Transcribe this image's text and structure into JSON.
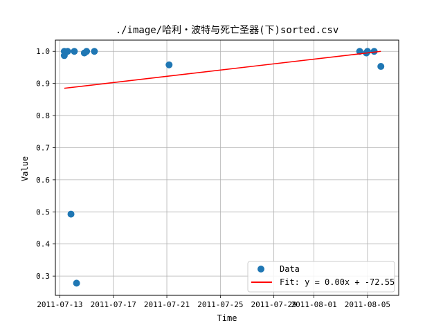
{
  "chart_data": {
    "type": "scatter",
    "title": "./image/哈利・波特与死亡圣器(下)sorted.csv",
    "xlabel": "Time",
    "ylabel": "Value",
    "x_is_date": true,
    "xlim": [
      "2011-07-12T16:00",
      "2011-08-07T08:00"
    ],
    "ylim": [
      0.24,
      1.035
    ],
    "x_ticks": [
      "2011-07-13",
      "2011-07-17",
      "2011-07-21",
      "2011-07-25",
      "2011-07-29",
      "2011-08-01",
      "2011-08-05"
    ],
    "y_ticks": [
      0.3,
      0.4,
      0.5,
      0.6,
      0.7,
      0.8,
      0.9,
      1.0
    ],
    "y_tick_labels": [
      "0.3",
      "0.4",
      "0.5",
      "0.6",
      "0.7",
      "0.8",
      "0.9",
      "1.0"
    ],
    "grid": true,
    "legend_position": "bottom-right",
    "series": [
      {
        "name": "Data",
        "kind": "scatter",
        "color": "#1f77b4",
        "points": [
          {
            "x": "2011-07-13T08:00",
            "y": 0.987
          },
          {
            "x": "2011-07-13T08:00",
            "y": 1.0
          },
          {
            "x": "2011-07-13T14:00",
            "y": 1.0
          },
          {
            "x": "2011-07-13T20:00",
            "y": 0.493
          },
          {
            "x": "2011-07-14T02:00",
            "y": 1.0
          },
          {
            "x": "2011-07-14T06:00",
            "y": 0.278
          },
          {
            "x": "2011-07-14T20:00",
            "y": 0.995
          },
          {
            "x": "2011-07-15T00:00",
            "y": 1.0
          },
          {
            "x": "2011-07-15T14:00",
            "y": 1.0
          },
          {
            "x": "2011-07-21T04:00",
            "y": 0.958
          },
          {
            "x": "2011-08-04T10:00",
            "y": 1.0
          },
          {
            "x": "2011-08-04T22:00",
            "y": 0.995
          },
          {
            "x": "2011-08-05T00:00",
            "y": 1.0
          },
          {
            "x": "2011-08-05T12:00",
            "y": 1.0
          },
          {
            "x": "2011-08-06T00:00",
            "y": 0.953
          }
        ]
      },
      {
        "name": "Fit: y = 0.00x + -72.55",
        "kind": "line",
        "color": "#ff0000",
        "points": [
          {
            "x": "2011-07-13T08:00",
            "y": 0.885
          },
          {
            "x": "2011-08-06T00:00",
            "y": 1.0
          }
        ]
      }
    ]
  }
}
